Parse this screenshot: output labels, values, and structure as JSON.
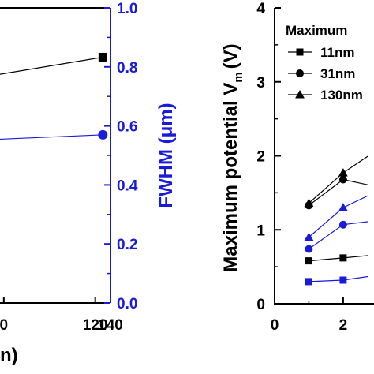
{
  "chart_data": [
    {
      "type": "line",
      "xlabel": "n)",
      "ylabel_right": "FWHM (μm)",
      "xlim": [
        -5,
        140
      ],
      "x_ticks": [
        {
          "v": 0,
          "label": "0"
        },
        {
          "v": 120,
          "label": "120"
        },
        {
          "v": 140,
          "label": "140"
        }
      ],
      "ylim_right": [
        0.0,
        1.0
      ],
      "y_ticks_right": [
        "0.0",
        "0.2",
        "0.4",
        "0.6",
        "0.8",
        "1.0"
      ],
      "colors": {
        "left_axis": "#000000",
        "right_axis": "#1a1ad9"
      },
      "series": [
        {
          "marker": "square",
          "color": "#000000",
          "axis": "left",
          "x": [
            -5,
            130
          ],
          "y_frac": [
            0.775,
            0.833
          ]
        },
        {
          "marker": "circle",
          "color": "#1a1ad9",
          "axis": "right",
          "x": [
            -5,
            130
          ],
          "y": [
            0.555,
            0.57
          ]
        }
      ]
    },
    {
      "type": "line",
      "ylabel": "Maximum potential V",
      "ylabel_sub": "m",
      "ylabel_unit": "(V)",
      "xlim": [
        0,
        2.9
      ],
      "ylim": [
        0,
        4
      ],
      "x_ticks": [
        "0",
        "2"
      ],
      "y_ticks": [
        "0",
        "1",
        "2",
        "3",
        "4"
      ],
      "legend": {
        "title": "Maximum",
        "entries": [
          {
            "label": "11nm",
            "marker": "square"
          },
          {
            "label": "31nm",
            "marker": "circle"
          },
          {
            "label": "130nm",
            "marker": "triangle"
          }
        ]
      },
      "series": [
        {
          "marker": "square",
          "color": "#000000",
          "x": [
            1,
            2,
            2.9
          ],
          "y": [
            0.58,
            0.62,
            0.66
          ]
        },
        {
          "marker": "circle",
          "color": "#000000",
          "x": [
            1,
            2,
            2.9
          ],
          "y": [
            1.33,
            1.68,
            1.59
          ]
        },
        {
          "marker": "triangle",
          "color": "#000000",
          "x": [
            1,
            2,
            2.9
          ],
          "y": [
            1.36,
            1.77,
            2.05
          ]
        },
        {
          "marker": "square",
          "color": "#1a1ad9",
          "x": [
            1,
            2,
            2.9
          ],
          "y": [
            0.3,
            0.32,
            0.38
          ]
        },
        {
          "marker": "circle",
          "color": "#1a1ad9",
          "x": [
            1,
            2,
            2.9
          ],
          "y": [
            0.74,
            1.07,
            1.12
          ]
        },
        {
          "marker": "triangle",
          "color": "#1a1ad9",
          "x": [
            1,
            2,
            2.9
          ],
          "y": [
            0.9,
            1.3,
            1.5
          ]
        }
      ]
    }
  ]
}
